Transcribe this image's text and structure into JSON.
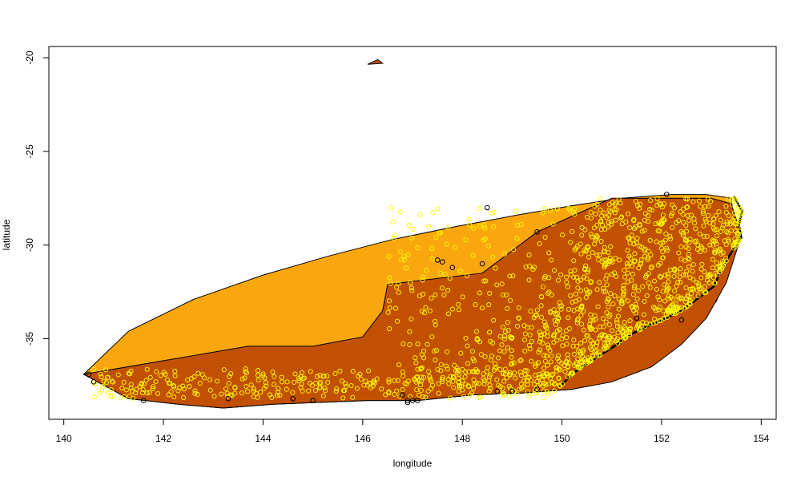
{
  "chart_data": {
    "type": "scatter",
    "title": "",
    "xlabel": "longitude",
    "ylabel": "latitude",
    "xlim": [
      139.7,
      154.3
    ],
    "ylim": [
      -39.3,
      -19.4
    ],
    "x_ticks": [
      140,
      142,
      144,
      146,
      148,
      150,
      152,
      154
    ],
    "y_ticks": [
      -20,
      -25,
      -30,
      -35
    ],
    "grid": false,
    "colors": {
      "outer_hull_fill": "#FAA70F",
      "inner_hull_fill": "#C15000",
      "coast_fill": "#000000",
      "points_inside": "#FFFF00",
      "points_outside": "#000000"
    },
    "layers": [
      {
        "name": "outer hull",
        "kind": "polygon",
        "lon": [
          140.4,
          141.3,
          142.3,
          143.2,
          144.2,
          145.1,
          146.1,
          147.1,
          148.2,
          149.2,
          150.2,
          151.3,
          152.2,
          153.1,
          153.5,
          153.4,
          152.9,
          152.2,
          151.2,
          150.2,
          149.1,
          147.9,
          146.6,
          145.3,
          144.0,
          142.6,
          141.3,
          140.4
        ],
        "lat": [
          -36.9,
          -38.2,
          -38.5,
          -38.7,
          -38.5,
          -38.4,
          -38.3,
          -38.3,
          -38.0,
          -37.9,
          -37.7,
          -37.0,
          -35.5,
          -33.0,
          -30.0,
          -27.5,
          -27.3,
          -27.3,
          -27.5,
          -27.9,
          -28.4,
          -29.0,
          -29.7,
          -30.6,
          -31.6,
          -32.9,
          -34.6,
          -36.9
        ]
      },
      {
        "name": "inner hull",
        "kind": "polygon",
        "lon": [
          140.4,
          141.3,
          142.3,
          143.2,
          144.2,
          145.1,
          146.1,
          147.1,
          148.2,
          149.2,
          150.2,
          151.0,
          151.8,
          152.4,
          152.9,
          153.3,
          153.6,
          153.4,
          153.0,
          151.0,
          149.5,
          148.4,
          146.5,
          146.4,
          146.0,
          145.0,
          143.7,
          140.4
        ],
        "lat": [
          -36.9,
          -38.2,
          -38.5,
          -38.7,
          -38.5,
          -38.4,
          -38.3,
          -38.3,
          -38.0,
          -37.9,
          -37.7,
          -37.3,
          -36.5,
          -35.3,
          -33.9,
          -32.0,
          -29.5,
          -27.8,
          -27.5,
          -27.5,
          -29.3,
          -31.5,
          -32.1,
          -33.5,
          -34.9,
          -35.4,
          -35.4,
          -36.9
        ]
      },
      {
        "name": "island",
        "kind": "polygon",
        "lon": [
          146.1,
          146.3,
          146.4
        ],
        "lat": [
          -20.35,
          -20.1,
          -20.3
        ]
      }
    ],
    "outside_points": {
      "lon": [
        140.5,
        140.6,
        141.6,
        143.3,
        144.6,
        145.0,
        146.8,
        146.9,
        146.9,
        147.0,
        147.1,
        147.5,
        147.6,
        147.8,
        148.4,
        148.5,
        149.5,
        151.5,
        152.1,
        152.4,
        148.7,
        149.0,
        149.5
      ],
      "lat": [
        -36.9,
        -37.3,
        -38.3,
        -38.2,
        -38.2,
        -38.3,
        -38.0,
        -38.3,
        -38.4,
        -38.3,
        -38.3,
        -30.8,
        -30.9,
        -31.2,
        -31.0,
        -28.0,
        -29.3,
        -33.9,
        -27.3,
        -34.0,
        -37.8,
        -37.8,
        -37.7
      ]
    },
    "inside_points_count": 1400
  }
}
